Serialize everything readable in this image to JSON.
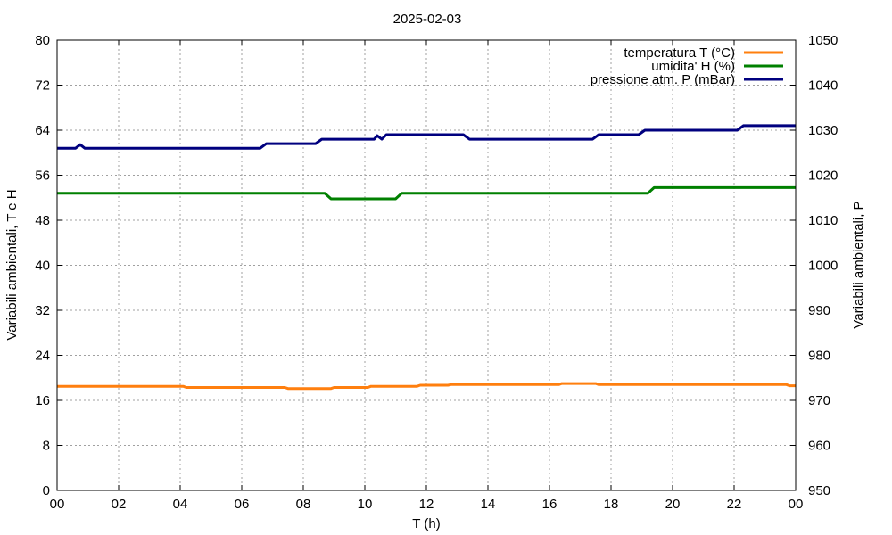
{
  "chart_data": {
    "type": "line",
    "title": "2025-02-03",
    "xlabel": "T (h)",
    "ylabel": "Variabili ambientali, T e H",
    "y2label": "Variabili ambientali, P",
    "xlim": [
      0,
      24
    ],
    "xticks": [
      "00",
      "02",
      "04",
      "06",
      "08",
      "10",
      "12",
      "14",
      "16",
      "18",
      "20",
      "22",
      "00"
    ],
    "ylim": [
      0,
      80
    ],
    "yticks": [
      0,
      8,
      16,
      24,
      32,
      40,
      48,
      56,
      64,
      72,
      80
    ],
    "y2lim": [
      950,
      1050
    ],
    "y2ticks": [
      950,
      960,
      970,
      980,
      990,
      1000,
      1010,
      1020,
      1030,
      1040,
      1050
    ],
    "grid": true,
    "legend_position": "top-right",
    "series": [
      {
        "name": "temperatura T (°C)",
        "color": "#ff7f0e",
        "axis": "left",
        "x": [
          0,
          4.1,
          4.2,
          7.4,
          7.5,
          8.9,
          9.0,
          10.1,
          10.2,
          11.7,
          11.8,
          12.7,
          12.8,
          16.3,
          16.4,
          17.5,
          17.6,
          23.7,
          23.8,
          24
        ],
        "y": [
          18.5,
          18.5,
          18.3,
          18.3,
          18.1,
          18.1,
          18.3,
          18.3,
          18.5,
          18.5,
          18.7,
          18.7,
          18.8,
          18.8,
          19.0,
          19.0,
          18.8,
          18.8,
          18.6,
          18.6
        ]
      },
      {
        "name": "umidita' H (%)",
        "color": "#008000",
        "axis": "left",
        "x": [
          0,
          8.7,
          8.9,
          11.0,
          11.2,
          19.2,
          19.4,
          24
        ],
        "y": [
          52.8,
          52.8,
          51.8,
          51.8,
          52.8,
          52.8,
          53.8,
          53.8
        ]
      },
      {
        "name": "pressione atm. P (mBar)",
        "color": "#00007f",
        "axis": "right",
        "x": [
          0,
          0.6,
          0.75,
          0.9,
          6.6,
          6.8,
          8.4,
          8.6,
          10.3,
          10.4,
          10.55,
          10.7,
          13.2,
          13.4,
          17.4,
          17.6,
          18.9,
          19.1,
          22.1,
          22.3,
          24
        ],
        "y": [
          1026,
          1026,
          1026.8,
          1026,
          1026,
          1027,
          1027,
          1028,
          1028,
          1028.8,
          1028,
          1029,
          1029,
          1028,
          1028,
          1029,
          1029,
          1030,
          1030,
          1031,
          1031
        ]
      }
    ]
  }
}
